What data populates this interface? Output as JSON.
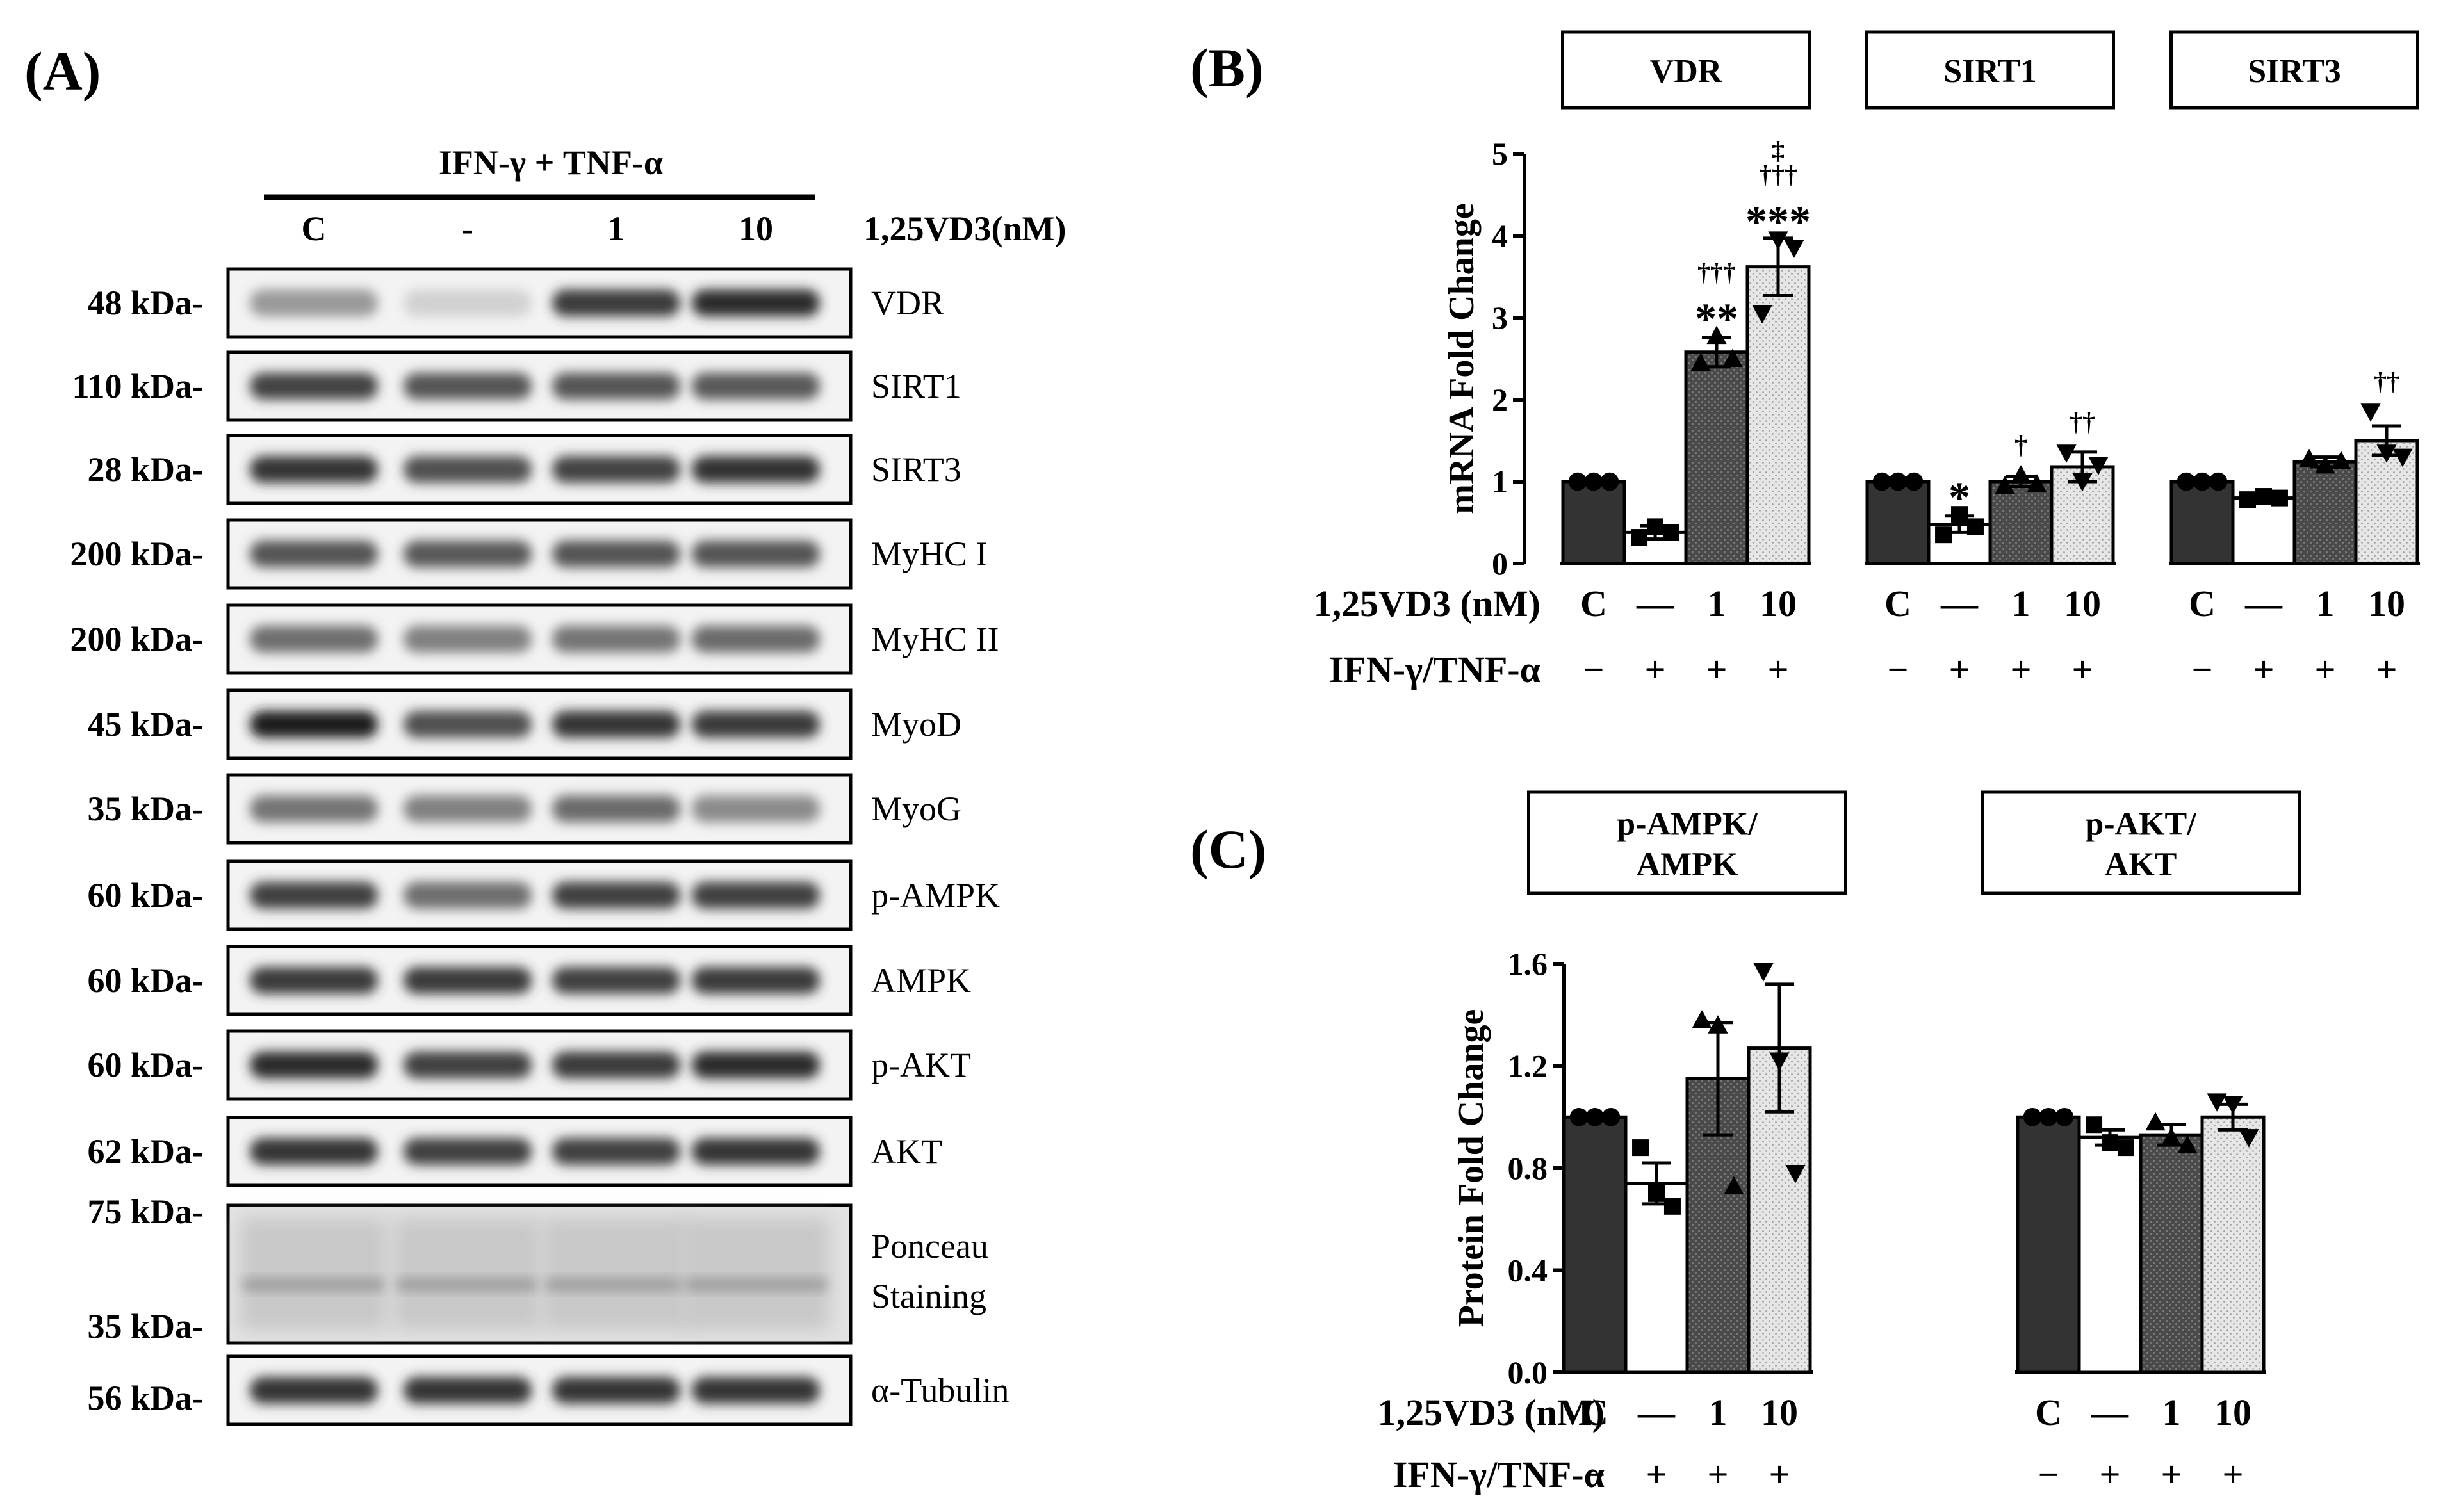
{
  "panel_labels": {
    "a": "(A)",
    "b": "(B)",
    "c": "(C)"
  },
  "western": {
    "treatment_header": "IFN-γ + TNF-α",
    "dose_label": "1,25VD3(nM)",
    "lanes": [
      "C",
      "-",
      "1",
      "10"
    ],
    "blots": [
      {
        "name": "VDR",
        "mw": "48 kDa-",
        "intensity": [
          0.38,
          0.12,
          0.82,
          0.9
        ]
      },
      {
        "name": "SIRT1",
        "mw": "110 kDa-",
        "intensity": [
          0.78,
          0.7,
          0.7,
          0.68
        ]
      },
      {
        "name": "SIRT3",
        "mw": "28 kDa-",
        "intensity": [
          0.85,
          0.72,
          0.78,
          0.86
        ]
      },
      {
        "name": "MyHC I",
        "mw": "200 kDa-",
        "intensity": [
          0.7,
          0.68,
          0.7,
          0.7
        ]
      },
      {
        "name": "MyHC II",
        "mw": "200 kDa-",
        "intensity": [
          0.58,
          0.5,
          0.55,
          0.6
        ]
      },
      {
        "name": "MyoD",
        "mw": "45 kDa-",
        "intensity": [
          0.95,
          0.72,
          0.85,
          0.82
        ]
      },
      {
        "name": "MyoG",
        "mw": "35 kDa-",
        "intensity": [
          0.55,
          0.5,
          0.6,
          0.45
        ]
      },
      {
        "name": "p-AMPK",
        "mw": "60 kDa-",
        "intensity": [
          0.8,
          0.58,
          0.8,
          0.8
        ]
      },
      {
        "name": "AMPK",
        "mw": "60 kDa-",
        "intensity": [
          0.82,
          0.82,
          0.8,
          0.82
        ]
      },
      {
        "name": "p-AKT",
        "mw": "60 kDa-",
        "intensity": [
          0.9,
          0.8,
          0.82,
          0.9
        ]
      },
      {
        "name": "AKT",
        "mw": "62 kDa-",
        "intensity": [
          0.85,
          0.8,
          0.8,
          0.85
        ]
      }
    ],
    "ponceau": {
      "name_line1": "Ponceau",
      "name_line2": "Staining",
      "mw_top": "75 kDa-",
      "mw_bottom": "35 kDa-"
    },
    "loading": {
      "name": "α-Tubulin",
      "mw": "56 kDa-",
      "intensity": [
        0.85,
        0.85,
        0.85,
        0.85
      ]
    }
  },
  "chart_data": [
    {
      "type": "bar",
      "panel": "(B)",
      "ylabel": "mRNA Fold Change",
      "ylim": [
        0,
        5
      ],
      "yticks": [
        0,
        1,
        2,
        3,
        4,
        5
      ],
      "categories": [
        "C",
        "—",
        "1",
        "10"
      ],
      "dose_row_label": "1,25VD3 (nM)",
      "treatment_row_label": "IFN-γ/TNF-α",
      "treatment_signs": [
        "−",
        "+",
        "+",
        "+"
      ],
      "groups": [
        {
          "name": "VDR",
          "values": [
            1.0,
            0.38,
            2.58,
            3.62
          ],
          "sem": [
            0,
            0.08,
            0.18,
            0.35
          ],
          "points": [
            [
              1,
              1,
              1
            ],
            [
              0.32,
              0.45,
              0.38
            ],
            [
              2.45,
              2.78,
              2.5
            ],
            [
              3.05,
              3.95,
              3.85
            ]
          ],
          "annotations": [
            {
              "bar": 2,
              "lines": [
                "†††",
                "**"
              ]
            },
            {
              "bar": 3,
              "lines": [
                "‡",
                "†††",
                "***"
              ]
            }
          ]
        },
        {
          "name": "SIRT1",
          "values": [
            1.0,
            0.48,
            1.0,
            1.18
          ],
          "sem": [
            0,
            0.1,
            0.06,
            0.18
          ],
          "points": [
            [
              1,
              1,
              1
            ],
            [
              0.35,
              0.6,
              0.45
            ],
            [
              0.95,
              1.08,
              0.97
            ],
            [
              1.35,
              1.0,
              1.2
            ]
          ],
          "annotations": [
            {
              "bar": 1,
              "lines": [
                "*"
              ]
            },
            {
              "bar": 2,
              "lines": [
                "†"
              ]
            },
            {
              "bar": 3,
              "lines": [
                "††"
              ]
            }
          ]
        },
        {
          "name": "SIRT3",
          "values": [
            1.0,
            0.8,
            1.24,
            1.5
          ],
          "sem": [
            0,
            0.02,
            0.06,
            0.18
          ],
          "points": [
            [
              1,
              1,
              1
            ],
            [
              0.78,
              0.82,
              0.8
            ],
            [
              1.28,
              1.2,
              1.25
            ],
            [
              1.85,
              1.35,
              1.3
            ]
          ],
          "annotations": [
            {
              "bar": 3,
              "lines": [
                "††"
              ]
            }
          ]
        }
      ]
    },
    {
      "type": "bar",
      "panel": "(C)",
      "ylabel": "Protein Fold Change",
      "ylim": [
        0,
        1.6
      ],
      "yticks": [
        "0.0",
        "0.4",
        "0.8",
        "1.2",
        "1.6"
      ],
      "categories": [
        "C",
        "—",
        "1",
        "10"
      ],
      "dose_row_label": "1,25VD3 (nM)",
      "treatment_row_label": "IFN-γ/TNF-α",
      "treatment_signs": [
        "−",
        "+",
        "+",
        "+"
      ],
      "groups": [
        {
          "name_line1": "p-AMPK/",
          "name_line2": "AMPK",
          "values": [
            1.0,
            0.74,
            1.15,
            1.27
          ],
          "sem": [
            0,
            0.08,
            0.22,
            0.25
          ],
          "points": [
            [
              1,
              1,
              1
            ],
            [
              0.88,
              0.7,
              0.65
            ],
            [
              1.38,
              1.36,
              0.73
            ],
            [
              1.57,
              1.22,
              0.78
            ]
          ],
          "annotations": []
        },
        {
          "name_line1": "p-AKT/",
          "name_line2": "AKT",
          "values": [
            1.0,
            0.92,
            0.93,
            1.0
          ],
          "sem": [
            0,
            0.03,
            0.04,
            0.05
          ],
          "points": [
            [
              1,
              1,
              1
            ],
            [
              0.97,
              0.9,
              0.88
            ],
            [
              0.98,
              0.92,
              0.89
            ],
            [
              1.06,
              1.05,
              0.92
            ]
          ],
          "annotations": []
        }
      ]
    }
  ]
}
